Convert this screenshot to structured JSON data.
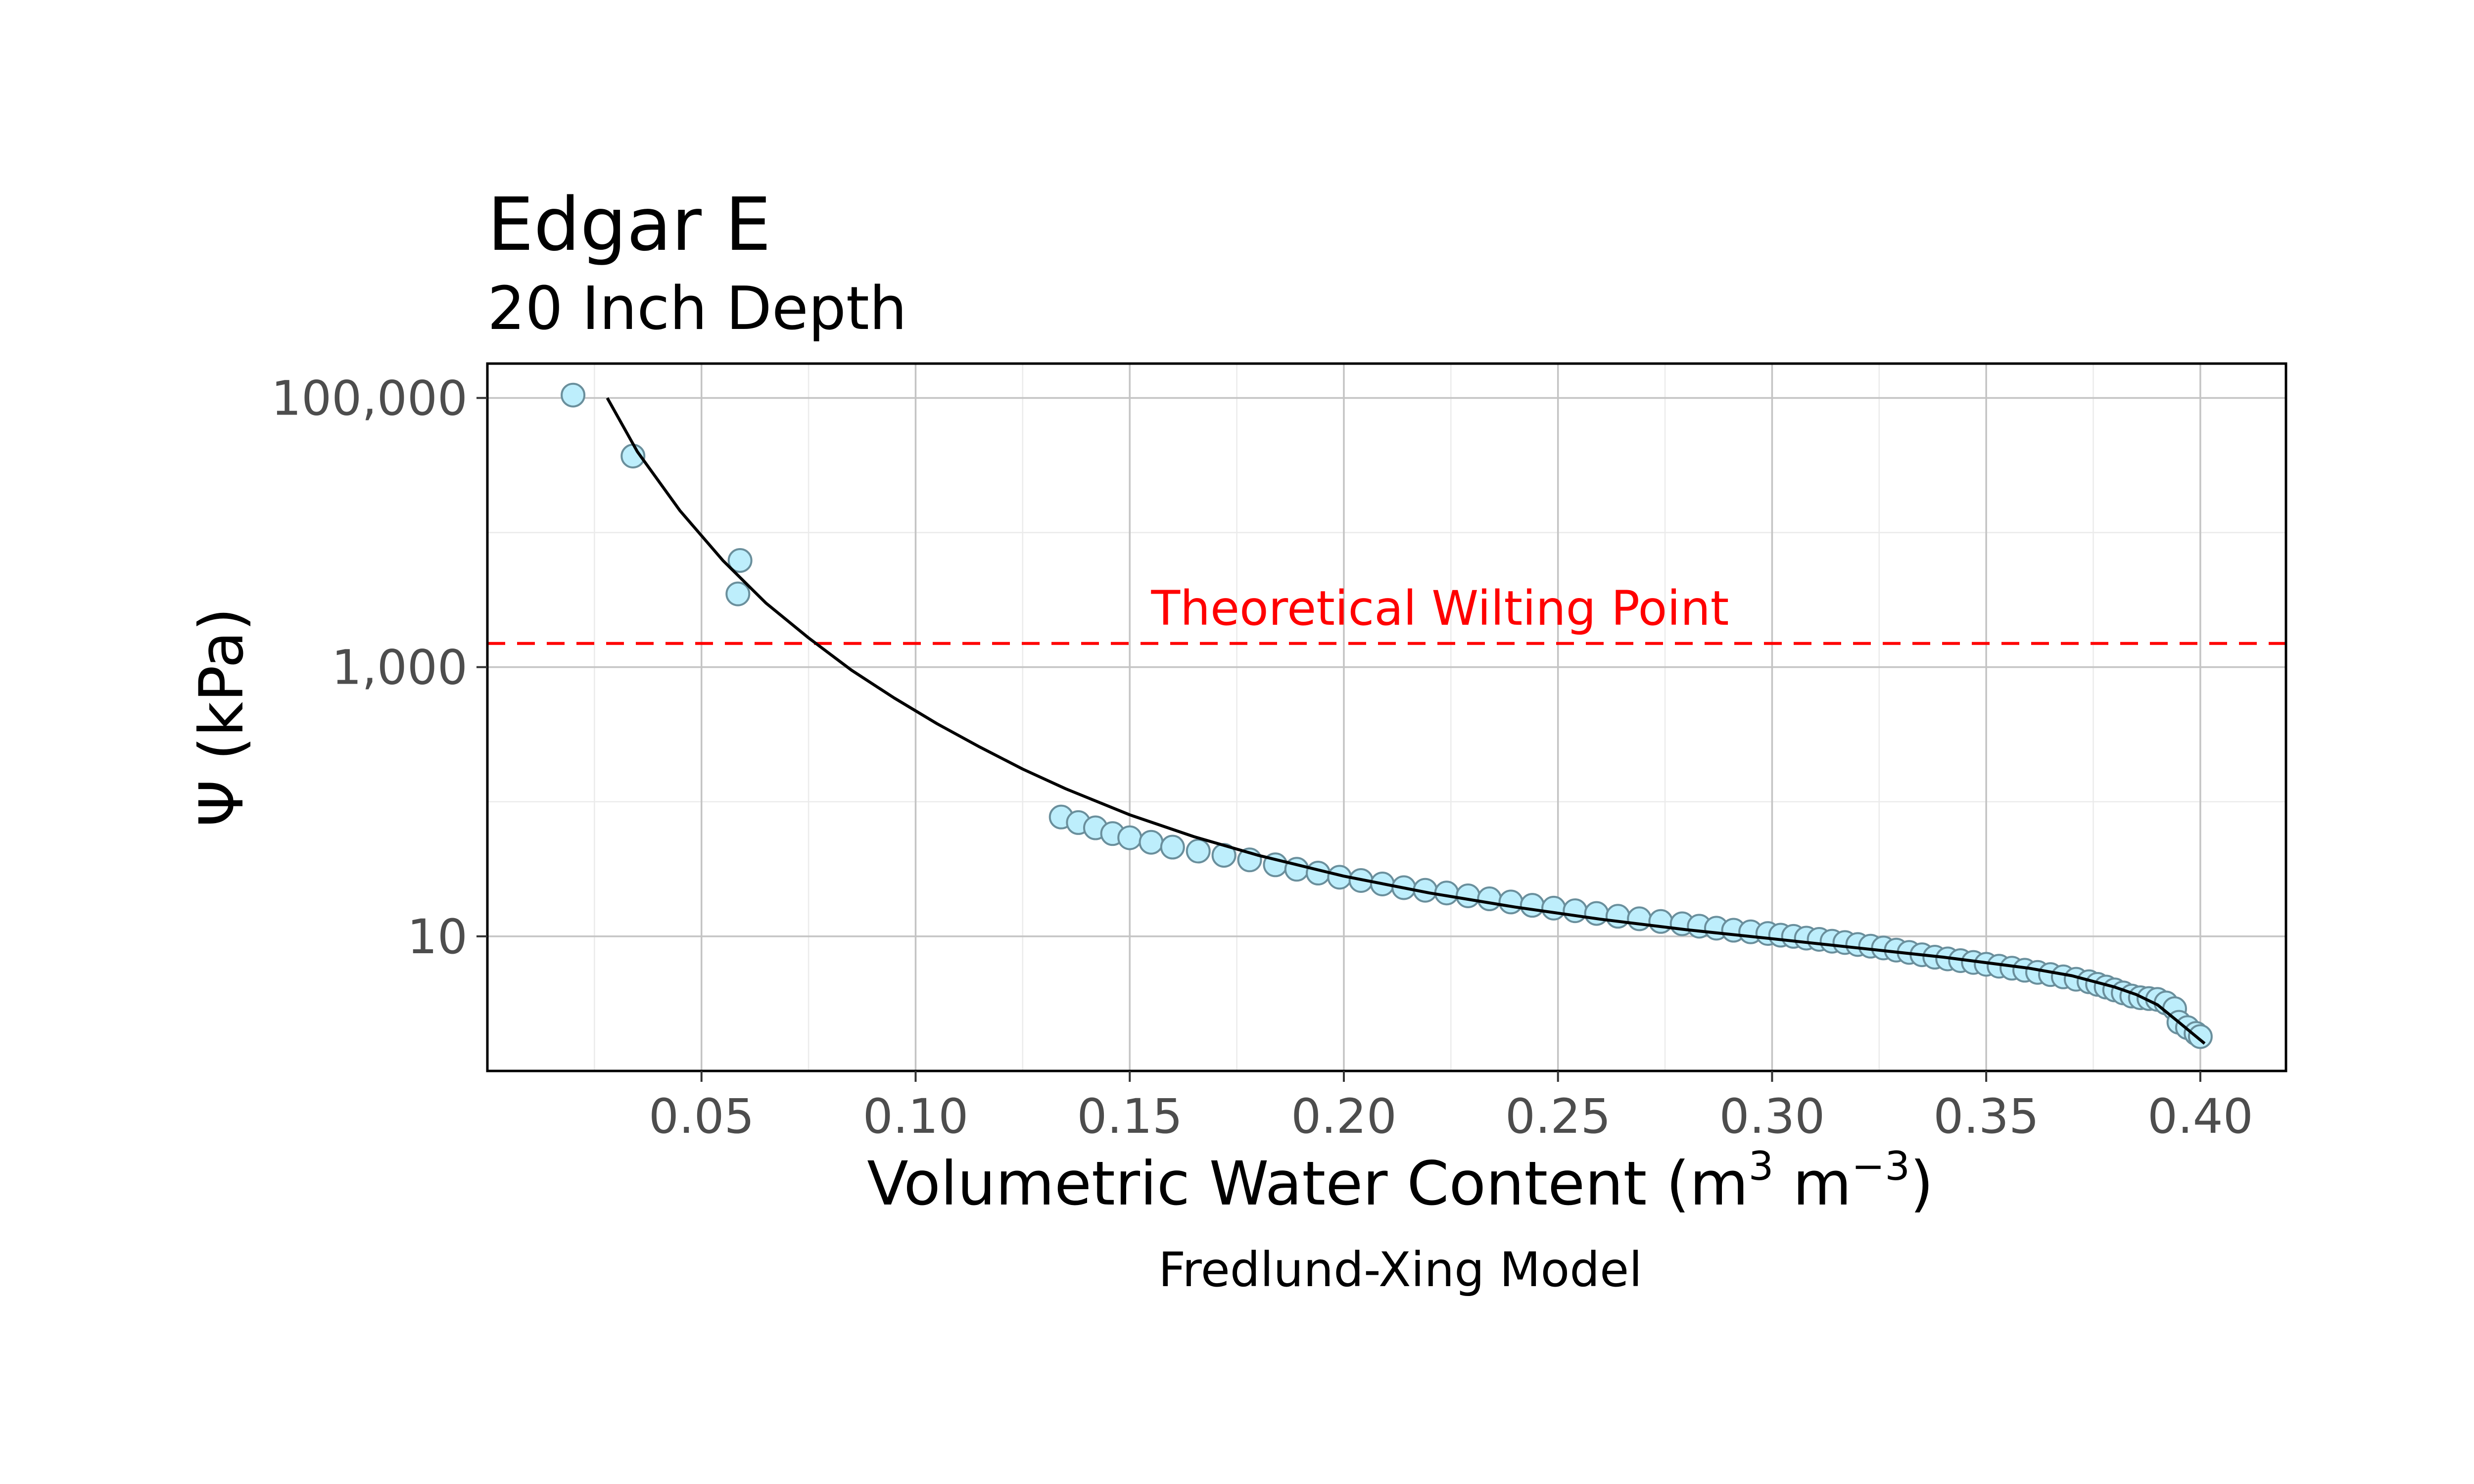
{
  "chart_data": {
    "type": "scatter",
    "title": "Edgar E",
    "subtitle": "20 Inch Depth",
    "xlabel_main": "Volumetric Water Content (m",
    "xlabel_sup1": "3",
    "xlabel_mid": " m",
    "xlabel_sup2": "−3",
    "xlabel_end": ")",
    "ylabel": "Ψ (kPa)",
    "caption": "Fredlund-Xing Model",
    "annotation": {
      "text": "Theoretical Wilting Point",
      "y": 1500,
      "x_label": 0.155,
      "color": "#ff0000"
    },
    "x_ticks": [
      0.05,
      0.1,
      0.15,
      0.2,
      0.25,
      0.3,
      0.35,
      0.4
    ],
    "x_tick_labels": [
      "0.05",
      "0.10",
      "0.15",
      "0.20",
      "0.25",
      "0.30",
      "0.35",
      "0.40"
    ],
    "xlim": [
      0.0,
      0.42
    ],
    "y_scale": "log10",
    "y_ticks": [
      10,
      1000,
      100000
    ],
    "y_tick_labels": [
      "10",
      "1,000",
      "100,000"
    ],
    "ylim": [
      1.0,
      180000
    ],
    "grid": true,
    "point_fill": "#bdeefc",
    "point_stroke": "#6a8f9c",
    "series": [
      {
        "kind": "points",
        "points": [
          [
            0.02,
            105000
          ],
          [
            0.034,
            37000
          ],
          [
            0.059,
            6200
          ],
          [
            0.0585,
            3500
          ],
          [
            0.134,
            77
          ],
          [
            0.138,
            70
          ],
          [
            0.142,
            64
          ],
          [
            0.146,
            58
          ],
          [
            0.15,
            54
          ],
          [
            0.155,
            50
          ],
          [
            0.16,
            46
          ],
          [
            0.166,
            43
          ],
          [
            0.172,
            40
          ],
          [
            0.178,
            37
          ],
          [
            0.184,
            34
          ],
          [
            0.189,
            31.5
          ],
          [
            0.194,
            29.5
          ],
          [
            0.199,
            27.5
          ],
          [
            0.204,
            26
          ],
          [
            0.209,
            24.5
          ],
          [
            0.214,
            23
          ],
          [
            0.219,
            22
          ],
          [
            0.224,
            21
          ],
          [
            0.229,
            20
          ],
          [
            0.234,
            19
          ],
          [
            0.239,
            18
          ],
          [
            0.244,
            17
          ],
          [
            0.249,
            16.2
          ],
          [
            0.254,
            15.5
          ],
          [
            0.259,
            14.8
          ],
          [
            0.264,
            14.1
          ],
          [
            0.269,
            13.5
          ],
          [
            0.274,
            12.9
          ],
          [
            0.279,
            12.4
          ],
          [
            0.283,
            11.9
          ],
          [
            0.287,
            11.5
          ],
          [
            0.291,
            11.1
          ],
          [
            0.295,
            10.8
          ],
          [
            0.299,
            10.5
          ],
          [
            0.302,
            10.2
          ],
          [
            0.305,
            10.0
          ],
          [
            0.308,
            9.7
          ],
          [
            0.311,
            9.5
          ],
          [
            0.314,
            9.2
          ],
          [
            0.317,
            9.0
          ],
          [
            0.32,
            8.7
          ],
          [
            0.323,
            8.45
          ],
          [
            0.326,
            8.2
          ],
          [
            0.329,
            7.9
          ],
          [
            0.332,
            7.6
          ],
          [
            0.335,
            7.3
          ],
          [
            0.338,
            7.0
          ],
          [
            0.341,
            6.8
          ],
          [
            0.344,
            6.6
          ],
          [
            0.347,
            6.4
          ],
          [
            0.35,
            6.2
          ],
          [
            0.353,
            6.0
          ],
          [
            0.356,
            5.8
          ],
          [
            0.359,
            5.6
          ],
          [
            0.362,
            5.4
          ],
          [
            0.365,
            5.2
          ],
          [
            0.368,
            5.0
          ],
          [
            0.371,
            4.8
          ],
          [
            0.374,
            4.6
          ],
          [
            0.376,
            4.4
          ],
          [
            0.378,
            4.2
          ],
          [
            0.38,
            4.0
          ],
          [
            0.382,
            3.8
          ],
          [
            0.384,
            3.6
          ],
          [
            0.386,
            3.5
          ],
          [
            0.388,
            3.45
          ],
          [
            0.39,
            3.4
          ],
          [
            0.392,
            3.2
          ],
          [
            0.394,
            2.9
          ],
          [
            0.395,
            2.3
          ],
          [
            0.397,
            2.1
          ],
          [
            0.399,
            1.9
          ],
          [
            0.4,
            1.8
          ]
        ]
      },
      {
        "kind": "line",
        "color": "#000000",
        "points": [
          [
            0.028,
            100000
          ],
          [
            0.035,
            40000
          ],
          [
            0.045,
            14500
          ],
          [
            0.055,
            6200
          ],
          [
            0.065,
            3000
          ],
          [
            0.075,
            1650
          ],
          [
            0.085,
            950
          ],
          [
            0.095,
            590
          ],
          [
            0.105,
            380
          ],
          [
            0.115,
            255
          ],
          [
            0.125,
            175
          ],
          [
            0.135,
            125
          ],
          [
            0.15,
            80
          ],
          [
            0.165,
            55
          ],
          [
            0.18,
            40
          ],
          [
            0.2,
            28
          ],
          [
            0.22,
            21
          ],
          [
            0.24,
            16.5
          ],
          [
            0.26,
            13.4
          ],
          [
            0.28,
            11.2
          ],
          [
            0.3,
            9.6
          ],
          [
            0.32,
            8.2
          ],
          [
            0.34,
            7.0
          ],
          [
            0.36,
            5.8
          ],
          [
            0.37,
            5.1
          ],
          [
            0.38,
            4.2
          ],
          [
            0.385,
            3.7
          ],
          [
            0.39,
            3.1
          ],
          [
            0.395,
            2.3
          ],
          [
            0.401,
            1.6
          ]
        ]
      }
    ]
  }
}
